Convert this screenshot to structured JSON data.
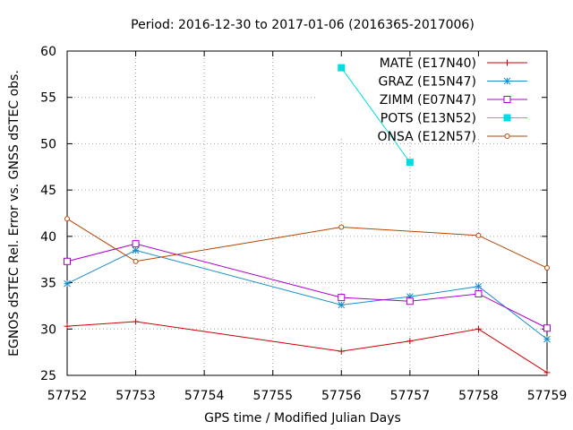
{
  "chart_data": {
    "type": "line",
    "title": "Period: 2016-12-30 to 2017-01-06 (2016365-2017006)",
    "xlabel": "GPS time / Modified Julian Days",
    "ylabel": "EGNOS dSTEC Rel. Error vs. GNSS dSTEC obs.",
    "xlim": [
      57752,
      57759
    ],
    "ylim": [
      25,
      60
    ],
    "x_ticks": [
      57752,
      57753,
      57754,
      57755,
      57756,
      57757,
      57758,
      57759
    ],
    "y_ticks": [
      25,
      30,
      35,
      40,
      45,
      50,
      55,
      60
    ],
    "grid": true,
    "legend_position": "top-right",
    "series": [
      {
        "name": "MATE (E17N40)",
        "color": "#cc0000",
        "marker": "plus",
        "x": [
          57752,
          57753,
          57756,
          57757,
          57758,
          57759
        ],
        "values": [
          30.3,
          30.8,
          27.6,
          28.7,
          30.0,
          25.3
        ]
      },
      {
        "name": "GRAZ (E15N47)",
        "color": "#1a8fc8",
        "marker": "star",
        "x": [
          57752,
          57753,
          57756,
          57757,
          57758,
          57759
        ],
        "values": [
          34.9,
          38.5,
          32.6,
          33.5,
          34.6,
          28.9
        ]
      },
      {
        "name": "ZIMM (E07N47)",
        "color": "#aa00cc",
        "marker": "square-open",
        "x": [
          57752,
          57753,
          57756,
          57757,
          57758,
          57759
        ],
        "values": [
          37.3,
          39.2,
          33.4,
          33.0,
          33.8,
          30.1
        ]
      },
      {
        "name": "POTS (E13N52)",
        "color": "#00dde0",
        "marker": "square-filled",
        "x": [
          57756,
          57757
        ],
        "values": [
          58.2,
          48.0
        ]
      },
      {
        "name": "ONSA (E12N57)",
        "color": "#b34400",
        "marker": "circle-open",
        "x": [
          57752,
          57753,
          57756,
          57758,
          57759
        ],
        "values": [
          41.9,
          37.3,
          41.0,
          40.1,
          36.6
        ]
      }
    ]
  }
}
